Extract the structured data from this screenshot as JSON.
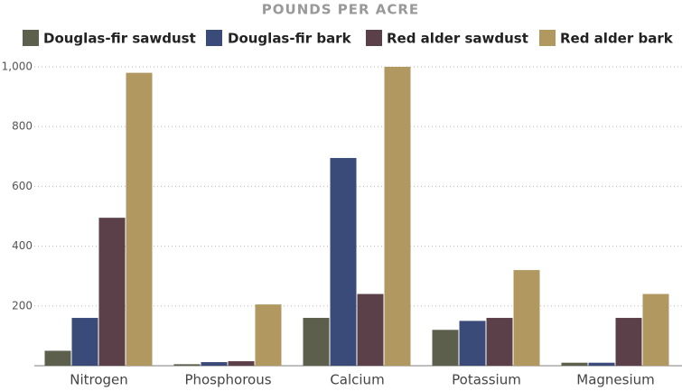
{
  "chart_data": {
    "type": "bar",
    "title": "POUNDS PER ACRE",
    "categories": [
      "Nitrogen",
      "Phosphorous",
      "Calcium",
      "Potassium",
      "Magnesium"
    ],
    "series": [
      {
        "name": "Douglas-fir sawdust",
        "color": "#5b5f4b",
        "values": [
          50,
          5,
          160,
          120,
          10
        ]
      },
      {
        "name": "Douglas-fir bark",
        "color": "#3b4b79",
        "values": [
          160,
          12,
          695,
          150,
          10
        ]
      },
      {
        "name": "Red alder sawdust",
        "color": "#5b3f49",
        "values": [
          495,
          15,
          240,
          160,
          160
        ]
      },
      {
        "name": "Red alder bark",
        "color": "#b09860",
        "values": [
          980,
          205,
          1000,
          320,
          240
        ]
      }
    ],
    "ylim": [
      0,
      1000
    ],
    "yticks": [
      200,
      400,
      600,
      800,
      {
        "value": 1000,
        "label": "1,000"
      }
    ],
    "grid": true
  }
}
